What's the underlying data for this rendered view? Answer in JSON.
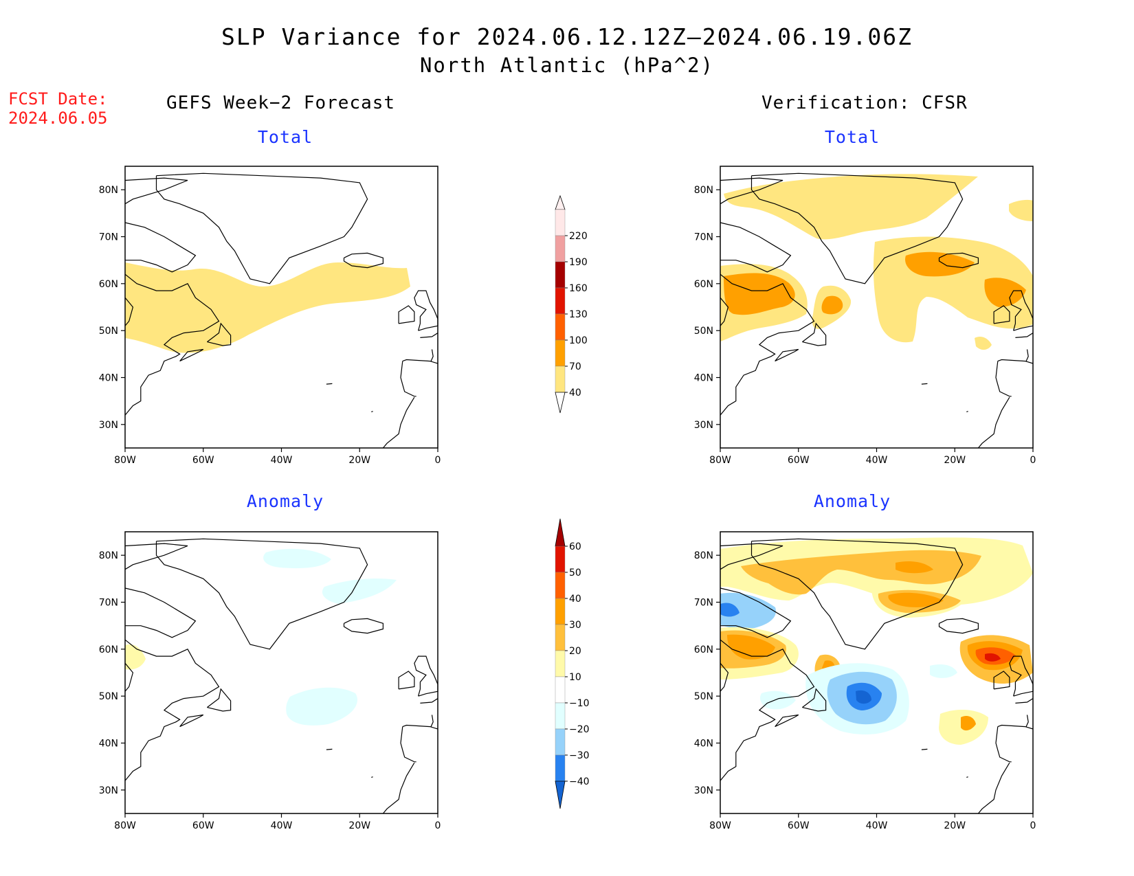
{
  "title": {
    "line1": "SLP Variance for 2024.06.12.12Z—2024.06.19.06Z",
    "line2": "North Atlantic (hPa^2)"
  },
  "fcst": {
    "label": "FCST Date:",
    "date": "2024.06.05"
  },
  "left_column_title": "GEFS Week−2 Forecast",
  "right_column_title": "Verification: CFSR",
  "panels": {
    "tl": "Total",
    "tr": "Total",
    "bl": "Anomaly",
    "br": "Anomaly"
  },
  "axes": {
    "lon_labels": [
      "80W",
      "60W",
      "40W",
      "20W",
      "0"
    ],
    "lat_labels": [
      "30N",
      "40N",
      "50N",
      "60N",
      "70N",
      "80N"
    ]
  },
  "colors": {
    "total": [
      "#ffe680",
      "#ffa000",
      "#ff6000",
      "#e11400",
      "#a50000",
      "#f0a0a0",
      "#ffe8e8"
    ],
    "anomaly": [
      "#1464d2",
      "#2882f0",
      "#96d2fa",
      "#e1ffff",
      "#ffffff",
      "#fffaaa",
      "#ffc03c",
      "#ffa000",
      "#ff6000",
      "#e11400",
      "#a50000"
    ]
  },
  "chart_data": [
    {
      "type": "heatmap",
      "panel": "tl",
      "title": "Total",
      "source": "GEFS Week-2 Forecast",
      "xlabel": "",
      "ylabel": "",
      "xlim": [
        "80W",
        "0"
      ],
      "ylim": [
        "25N",
        "85N"
      ],
      "levels": [
        40,
        70,
        100,
        130,
        160,
        190,
        220
      ],
      "regions": [
        {
          "area": "Labrador / Newfoundland to 10W, 46N-62N",
          "class": "40-70"
        }
      ]
    },
    {
      "type": "heatmap",
      "panel": "tr",
      "title": "Total",
      "source": "Verification: CFSR",
      "xlabel": "",
      "ylabel": "",
      "xlim": [
        "80W",
        "0"
      ],
      "ylim": [
        "25N",
        "85N"
      ],
      "levels": [
        40,
        70,
        100,
        130,
        160,
        190,
        220
      ],
      "regions": [
        {
          "area": "Northern Greenland 70N-83N",
          "class": "40-70"
        },
        {
          "area": "Labrador / Hudson Bay 50N-62N",
          "class": "70-100"
        },
        {
          "area": "Near Newfoundland 50W",
          "class": "70-100"
        },
        {
          "area": "South of Iceland 25W 62N",
          "class": "70-100"
        },
        {
          "area": "British Isles 55N",
          "class": "70-100"
        },
        {
          "area": "Central Atlantic 45N-65N",
          "class": "40-70"
        }
      ]
    },
    {
      "type": "heatmap",
      "panel": "bl",
      "title": "Anomaly",
      "source": "GEFS Week-2 Forecast",
      "xlabel": "",
      "ylabel": "",
      "xlim": [
        "80W",
        "0"
      ],
      "ylim": [
        "25N",
        "85N"
      ],
      "levels": [
        -40,
        -30,
        -20,
        -10,
        10,
        20,
        30,
        40,
        50,
        60
      ],
      "regions": [
        {
          "area": "East Greenland 75N-80N",
          "class": "-20 to -10"
        },
        {
          "area": "Mid-Atlantic 30W 48N",
          "class": "-20 to -10"
        },
        {
          "area": "Hudson Bay edge 80W 58N",
          "class": "10-20"
        }
      ]
    },
    {
      "type": "heatmap",
      "panel": "br",
      "title": "Anomaly",
      "source": "Verification: CFSR",
      "xlabel": "",
      "ylabel": "",
      "xlim": [
        "80W",
        "0"
      ],
      "ylim": [
        "25N",
        "85N"
      ],
      "levels": [
        -40,
        -30,
        -20,
        -10,
        10,
        20,
        30,
        40,
        50,
        60
      ],
      "regions": [
        {
          "area": "Central Atlantic 40W 47N",
          "class": "-40 to -30"
        },
        {
          "area": "Baffin Island 75W 68N",
          "class": "-30 to -20"
        },
        {
          "area": "British Isles 10W 56N",
          "class": "40-50"
        },
        {
          "area": "South of Iceland 27W 62N",
          "class": "30-40"
        },
        {
          "area": "Labrador 65W 58N",
          "class": "20-30"
        },
        {
          "area": "Northern Greenland 80N",
          "class": "20-30"
        },
        {
          "area": "Azores 15W 42N",
          "class": "20-30"
        }
      ]
    }
  ],
  "colorbars": {
    "total": {
      "labels": [
        "40",
        "70",
        "100",
        "130",
        "160",
        "190",
        "220"
      ]
    },
    "anomaly": {
      "labels": [
        "−40",
        "−30",
        "−20",
        "−10",
        "10",
        "20",
        "30",
        "40",
        "50",
        "60"
      ]
    }
  }
}
